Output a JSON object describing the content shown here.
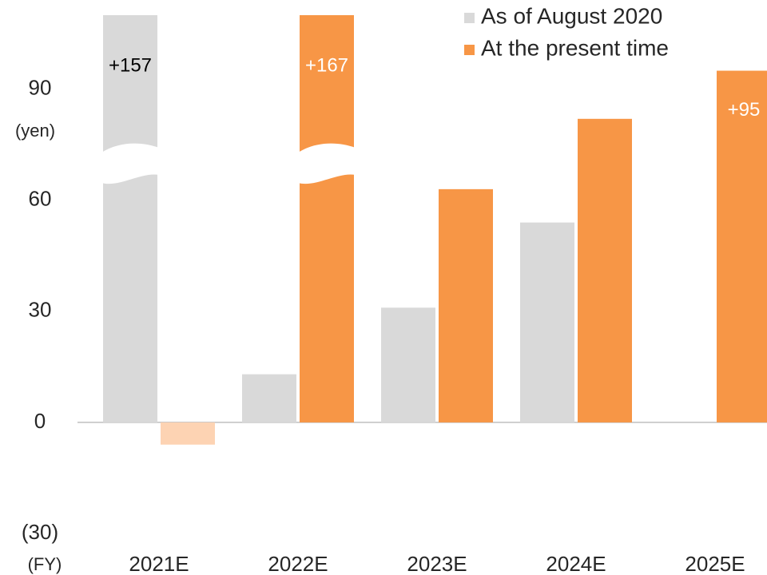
{
  "chart_data": {
    "type": "bar",
    "y_label": "(yen)",
    "x_label": "(FY)",
    "categories": [
      "2021E",
      "2022E",
      "2023E",
      "2024E",
      "2025E"
    ],
    "series": [
      {
        "name": "As of August 2020",
        "color": "#d9d9d9",
        "values": [
          157,
          13,
          31,
          54,
          null
        ],
        "value_labels": [
          "+157",
          null,
          null,
          null,
          null
        ]
      },
      {
        "name": "At the present time",
        "color": "#f79646",
        "point_colors": [
          "#fdd3b3",
          null,
          null,
          null,
          null
        ],
        "values": [
          -6,
          167,
          63,
          82,
          95
        ],
        "value_labels": [
          null,
          "+167",
          null,
          null,
          "+95"
        ]
      }
    ],
    "ylim": [
      -30,
      110
    ],
    "yticks": [
      {
        "value": -30,
        "label": "(30)"
      },
      0,
      30,
      60,
      90
    ],
    "legend": "upper right"
  }
}
